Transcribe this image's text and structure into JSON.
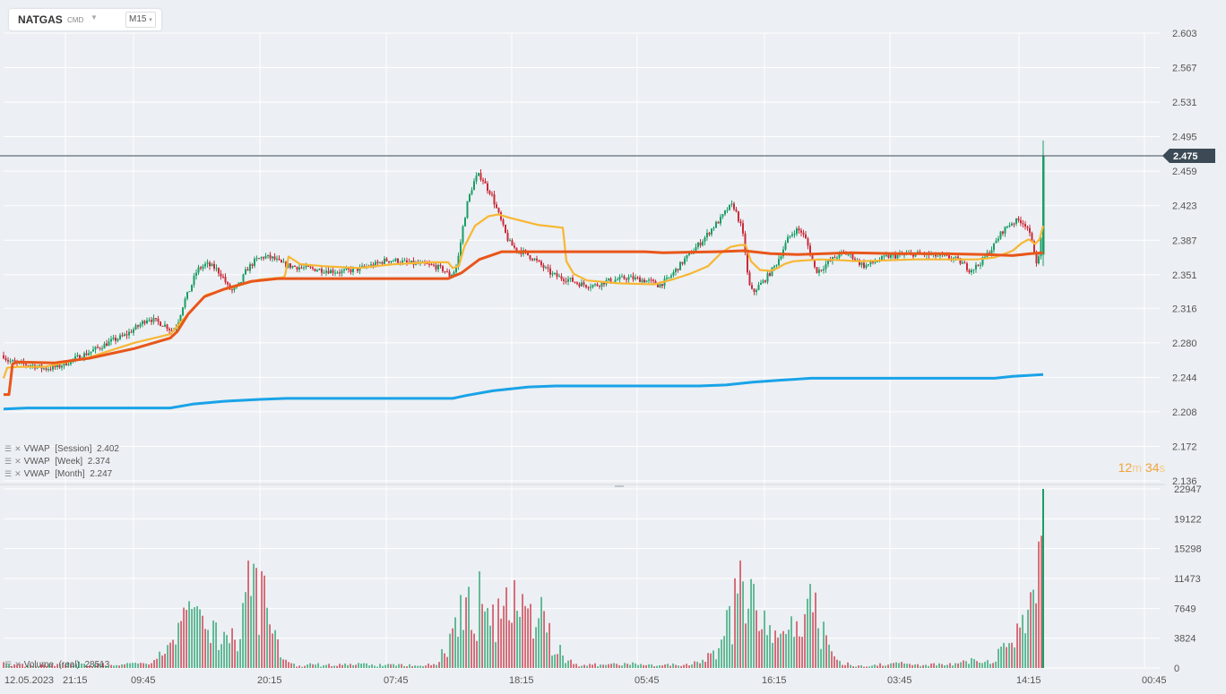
{
  "header": {
    "symbol": "NATGAS",
    "symbol_type": "CMD",
    "timeframe": "M15"
  },
  "indicators": [
    {
      "label": "VWAP",
      "param": "[Session]",
      "value": "2.402",
      "color": "#f7b733"
    },
    {
      "label": "VWAP",
      "param": "[Week]",
      "value": "2.374",
      "color": "#e8561a"
    },
    {
      "label": "VWAP",
      "param": "[Month]",
      "value": "2.247",
      "color": "#19a3e8"
    }
  ],
  "volume_legend": {
    "label": "Volume",
    "param": "(real)",
    "value": "28513"
  },
  "countdown": {
    "minutes": "12",
    "m_unit": "m",
    "seconds": "34",
    "s_unit": "s"
  },
  "colors": {
    "bull": "#1a9e66",
    "bear": "#c92b3a",
    "session": "#f7b733",
    "week": "#e8561a",
    "month": "#19a3e8",
    "price_label_bg": "#3b4a55"
  },
  "chart_data": {
    "type": "candlestick",
    "instrument": "NATGAS",
    "timeframe": "M15",
    "price_axis": {
      "ticks": [
        "2.603",
        "2.567",
        "2.531",
        "2.495",
        "2.459",
        "2.423",
        "2.387",
        "2.351",
        "2.316",
        "2.280",
        "2.244",
        "2.208",
        "2.172",
        "2.136"
      ],
      "range": [
        2.136,
        2.603
      ]
    },
    "current_price": "2.475",
    "volume_axis": {
      "ticks": [
        "22947",
        "19122",
        "15298",
        "11473",
        "7649",
        "3824",
        "0"
      ],
      "range": [
        0,
        22947
      ]
    },
    "time_axis": {
      "labels": [
        "12.05.2023",
        "21:15",
        "09:45",
        "20:15",
        "07:45",
        "18:15",
        "05:45",
        "16:15",
        "03:45",
        "14:15",
        "00:45"
      ]
    },
    "price_path": [
      [
        0,
        2.272
      ],
      [
        8,
        2.262
      ],
      [
        20,
        2.258
      ],
      [
        35,
        2.257
      ],
      [
        50,
        2.253
      ],
      [
        65,
        2.255
      ],
      [
        80,
        2.262
      ],
      [
        95,
        2.268
      ],
      [
        110,
        2.275
      ],
      [
        125,
        2.282
      ],
      [
        140,
        2.288
      ],
      [
        155,
        2.298
      ],
      [
        165,
        2.306
      ],
      [
        175,
        2.302
      ],
      [
        185,
        2.298
      ],
      [
        192,
        2.292
      ],
      [
        198,
        2.3
      ],
      [
        205,
        2.322
      ],
      [
        212,
        2.336
      ],
      [
        220,
        2.356
      ],
      [
        230,
        2.362
      ],
      [
        240,
        2.358
      ],
      [
        248,
        2.35
      ],
      [
        255,
        2.337
      ],
      [
        260,
        2.334
      ],
      [
        268,
        2.342
      ],
      [
        275,
        2.356
      ],
      [
        285,
        2.366
      ],
      [
        295,
        2.37
      ],
      [
        305,
        2.368
      ],
      [
        315,
        2.362
      ],
      [
        325,
        2.36
      ],
      [
        340,
        2.358
      ],
      [
        360,
        2.356
      ],
      [
        380,
        2.354
      ],
      [
        400,
        2.357
      ],
      [
        420,
        2.362
      ],
      [
        430,
        2.366
      ],
      [
        440,
        2.366
      ],
      [
        455,
        2.363
      ],
      [
        470,
        2.362
      ],
      [
        485,
        2.36
      ],
      [
        495,
        2.356
      ],
      [
        502,
        2.35
      ],
      [
        508,
        2.356
      ],
      [
        512,
        2.372
      ],
      [
        516,
        2.398
      ],
      [
        522,
        2.428
      ],
      [
        528,
        2.446
      ],
      [
        533,
        2.455
      ],
      [
        538,
        2.452
      ],
      [
        543,
        2.442
      ],
      [
        548,
        2.436
      ],
      [
        552,
        2.425
      ],
      [
        558,
        2.41
      ],
      [
        563,
        2.396
      ],
      [
        568,
        2.385
      ],
      [
        575,
        2.378
      ],
      [
        585,
        2.374
      ],
      [
        595,
        2.368
      ],
      [
        605,
        2.36
      ],
      [
        615,
        2.352
      ],
      [
        625,
        2.348
      ],
      [
        635,
        2.346
      ],
      [
        645,
        2.342
      ],
      [
        655,
        2.34
      ],
      [
        665,
        2.34
      ],
      [
        675,
        2.344
      ],
      [
        690,
        2.346
      ],
      [
        700,
        2.348
      ],
      [
        715,
        2.346
      ],
      [
        725,
        2.344
      ],
      [
        735,
        2.34
      ],
      [
        745,
        2.346
      ],
      [
        755,
        2.357
      ],
      [
        765,
        2.368
      ],
      [
        775,
        2.378
      ],
      [
        785,
        2.388
      ],
      [
        795,
        2.4
      ],
      [
        805,
        2.41
      ],
      [
        812,
        2.42
      ],
      [
        818,
        2.424
      ],
      [
        823,
        2.412
      ],
      [
        828,
        2.398
      ],
      [
        832,
        2.372
      ],
      [
        835,
        2.342
      ],
      [
        840,
        2.332
      ],
      [
        845,
        2.338
      ],
      [
        852,
        2.344
      ],
      [
        860,
        2.354
      ],
      [
        866,
        2.362
      ],
      [
        872,
        2.374
      ],
      [
        880,
        2.39
      ],
      [
        888,
        2.398
      ],
      [
        894,
        2.396
      ],
      [
        900,
        2.386
      ],
      [
        905,
        2.37
      ],
      [
        910,
        2.355
      ],
      [
        915,
        2.356
      ],
      [
        922,
        2.362
      ],
      [
        930,
        2.368
      ],
      [
        940,
        2.374
      ],
      [
        950,
        2.371
      ],
      [
        958,
        2.364
      ],
      [
        965,
        2.36
      ],
      [
        975,
        2.364
      ],
      [
        990,
        2.37
      ],
      [
        1005,
        2.371
      ],
      [
        1020,
        2.373
      ],
      [
        1035,
        2.372
      ],
      [
        1050,
        2.37
      ],
      [
        1065,
        2.368
      ],
      [
        1075,
        2.362
      ],
      [
        1082,
        2.356
      ],
      [
        1090,
        2.36
      ],
      [
        1098,
        2.368
      ],
      [
        1108,
        2.38
      ],
      [
        1118,
        2.396
      ],
      [
        1128,
        2.405
      ],
      [
        1138,
        2.408
      ],
      [
        1146,
        2.402
      ],
      [
        1152,
        2.382
      ],
      [
        1157,
        2.364
      ],
      [
        1161,
        2.372
      ],
      [
        1164,
        2.475
      ]
    ],
    "series": [
      {
        "name": "VWAP [Session]",
        "last": "2.402",
        "values": [
          [
            4,
            2.243
          ],
          [
            8,
            2.254
          ],
          [
            20,
            2.255
          ],
          [
            50,
            2.255
          ],
          [
            100,
            2.265
          ],
          [
            150,
            2.28
          ],
          [
            190,
            2.289
          ],
          [
            205,
            2.305
          ],
          [
            230,
            2.33
          ],
          [
            260,
            2.338
          ],
          [
            290,
            2.346
          ],
          [
            315,
            2.348
          ],
          [
            318,
            2.35
          ],
          [
            322,
            2.37
          ],
          [
            335,
            2.362
          ],
          [
            360,
            2.36
          ],
          [
            400,
            2.358
          ],
          [
            440,
            2.362
          ],
          [
            480,
            2.364
          ],
          [
            500,
            2.364
          ],
          [
            505,
            2.358
          ],
          [
            512,
            2.36
          ],
          [
            518,
            2.38
          ],
          [
            530,
            2.402
          ],
          [
            545,
            2.412
          ],
          [
            556,
            2.414
          ],
          [
            570,
            2.41
          ],
          [
            600,
            2.403
          ],
          [
            628,
            2.4
          ],
          [
            632,
            2.365
          ],
          [
            640,
            2.352
          ],
          [
            655,
            2.345
          ],
          [
            690,
            2.342
          ],
          [
            730,
            2.341
          ],
          [
            750,
            2.346
          ],
          [
            770,
            2.352
          ],
          [
            790,
            2.36
          ],
          [
            805,
            2.374
          ],
          [
            815,
            2.38
          ],
          [
            826,
            2.382
          ],
          [
            832,
            2.382
          ],
          [
            838,
            2.365
          ],
          [
            848,
            2.356
          ],
          [
            860,
            2.355
          ],
          [
            868,
            2.358
          ],
          [
            875,
            2.362
          ],
          [
            885,
            2.365
          ],
          [
            900,
            2.366
          ],
          [
            915,
            2.367
          ],
          [
            940,
            2.366
          ],
          [
            960,
            2.365
          ],
          [
            990,
            2.366
          ],
          [
            1020,
            2.367
          ],
          [
            1060,
            2.367
          ],
          [
            1090,
            2.367
          ],
          [
            1110,
            2.369
          ],
          [
            1130,
            2.376
          ],
          [
            1140,
            2.384
          ],
          [
            1148,
            2.388
          ],
          [
            1155,
            2.383
          ],
          [
            1160,
            2.388
          ],
          [
            1164,
            2.402
          ]
        ]
      },
      {
        "name": "VWAP [Week]",
        "last": "2.374",
        "values": [
          [
            4,
            2.226
          ],
          [
            10,
            2.226
          ],
          [
            14,
            2.258
          ],
          [
            20,
            2.26
          ],
          [
            60,
            2.259
          ],
          [
            100,
            2.264
          ],
          [
            150,
            2.274
          ],
          [
            190,
            2.285
          ],
          [
            198,
            2.292
          ],
          [
            210,
            2.31
          ],
          [
            228,
            2.328
          ],
          [
            250,
            2.336
          ],
          [
            280,
            2.344
          ],
          [
            310,
            2.347
          ],
          [
            400,
            2.347
          ],
          [
            500,
            2.347
          ],
          [
            515,
            2.353
          ],
          [
            535,
            2.367
          ],
          [
            560,
            2.375
          ],
          [
            620,
            2.375
          ],
          [
            720,
            2.375
          ],
          [
            740,
            2.374
          ],
          [
            800,
            2.375
          ],
          [
            830,
            2.376
          ],
          [
            860,
            2.373
          ],
          [
            890,
            2.372
          ],
          [
            920,
            2.373
          ],
          [
            950,
            2.374
          ],
          [
            1000,
            2.373
          ],
          [
            1050,
            2.373
          ],
          [
            1100,
            2.372
          ],
          [
            1130,
            2.371
          ],
          [
            1150,
            2.373
          ],
          [
            1164,
            2.374
          ]
        ]
      },
      {
        "name": "VWAP [Month]",
        "last": "2.247",
        "values": [
          [
            4,
            2.211
          ],
          [
            30,
            2.212
          ],
          [
            150,
            2.212
          ],
          [
            190,
            2.212
          ],
          [
            215,
            2.216
          ],
          [
            250,
            2.219
          ],
          [
            290,
            2.221
          ],
          [
            320,
            2.222
          ],
          [
            400,
            2.222
          ],
          [
            505,
            2.222
          ],
          [
            520,
            2.225
          ],
          [
            550,
            2.23
          ],
          [
            590,
            2.234
          ],
          [
            620,
            2.235
          ],
          [
            700,
            2.235
          ],
          [
            780,
            2.235
          ],
          [
            810,
            2.236
          ],
          [
            840,
            2.239
          ],
          [
            870,
            2.241
          ],
          [
            905,
            2.243
          ],
          [
            960,
            2.243
          ],
          [
            1110,
            2.243
          ],
          [
            1130,
            2.245
          ],
          [
            1164,
            2.247
          ]
        ]
      }
    ],
    "volume_bursts": [
      [
        5,
        900
      ],
      [
        80,
        1100
      ],
      [
        150,
        900
      ],
      [
        200,
        6500
      ],
      [
        215,
        11000
      ],
      [
        240,
        7500
      ],
      [
        265,
        6500
      ],
      [
        285,
        18000
      ],
      [
        300,
        2500
      ],
      [
        400,
        700
      ],
      [
        500,
        1200
      ],
      [
        520,
        11500
      ],
      [
        535,
        14500
      ],
      [
        550,
        11000
      ],
      [
        565,
        15500
      ],
      [
        585,
        12000
      ],
      [
        600,
        10500
      ],
      [
        615,
        3200
      ],
      [
        700,
        900
      ],
      [
        800,
        3000
      ],
      [
        830,
        16500
      ],
      [
        850,
        9000
      ],
      [
        870,
        8000
      ],
      [
        890,
        9000
      ],
      [
        905,
        12000
      ],
      [
        920,
        3000
      ],
      [
        1000,
        1000
      ],
      [
        1080,
        1500
      ],
      [
        1120,
        3500
      ],
      [
        1140,
        7500
      ],
      [
        1150,
        8500
      ],
      [
        1158,
        7000
      ],
      [
        1164,
        22947
      ]
    ]
  }
}
